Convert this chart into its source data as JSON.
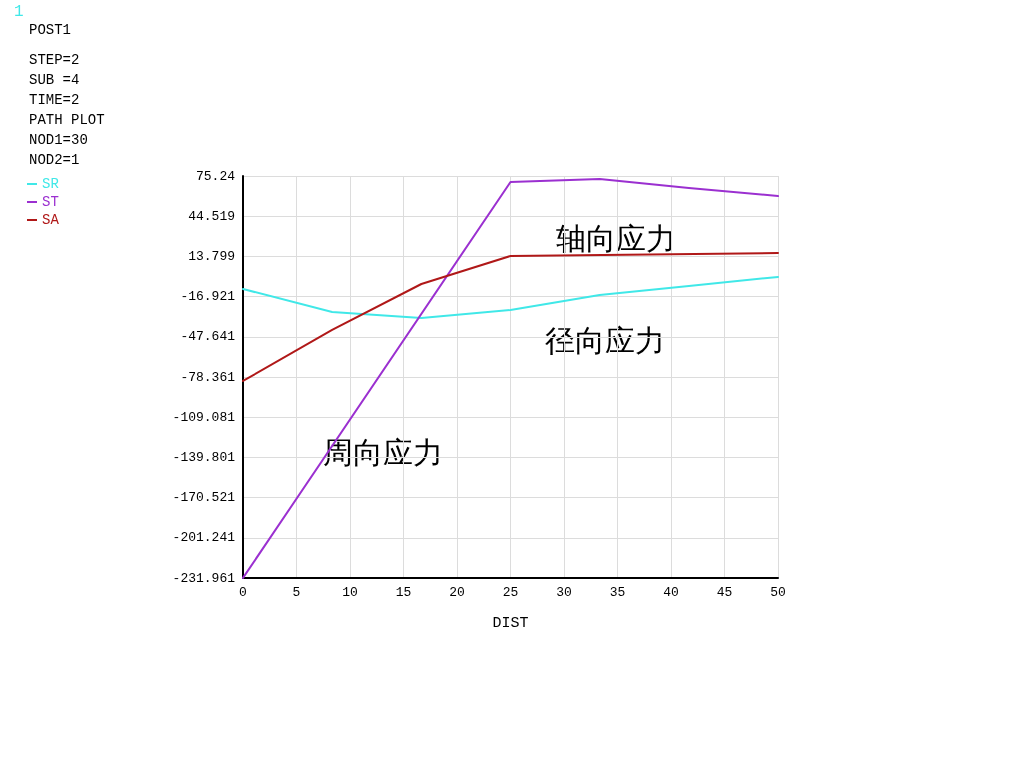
{
  "chart_data": {
    "type": "line",
    "xlabel": "DIST",
    "xlim": [
      0,
      50
    ],
    "xticks": [
      0,
      5,
      10,
      15,
      20,
      25,
      30,
      35,
      40,
      45,
      50
    ],
    "ylim": [
      -231.961,
      75.24
    ],
    "yticks": [
      -231.961,
      -201.241,
      -170.521,
      -139.801,
      -109.081,
      -78.361,
      -47.641,
      -16.921,
      13.799,
      44.519,
      75.24
    ],
    "grid": true,
    "legend": "top left",
    "marker": "none",
    "line_style": "solid",
    "series": [
      {
        "name": "SR",
        "color": "#40e8e8",
        "x": [
          0,
          8.33,
          16.67,
          25,
          33.33,
          41.67,
          50
        ],
        "values": [
          -11.1,
          -28.7,
          -33.3,
          -27.2,
          -15.7,
          -8.8,
          -1.9
        ]
      },
      {
        "name": "ST",
        "color": "#9b30d0",
        "x": [
          0,
          25,
          33.33,
          41.67,
          50
        ],
        "values": [
          -231.9,
          70.7,
          72.9,
          66.1,
          59.9
        ]
      },
      {
        "name": "SA",
        "color": "#b01818",
        "x": [
          0,
          8.33,
          16.67,
          25,
          50
        ],
        "values": [
          -81.4,
          -42.4,
          -7.3,
          14.1,
          16.4
        ]
      }
    ],
    "annotations": [
      "1",
      "POST1",
      "STEP=2",
      "SUB =4",
      "TIME=2",
      "PATH PLOT",
      "NOD1=30",
      "NOD2=1",
      "周向应力",
      "径向应力",
      "轴向应力"
    ]
  }
}
